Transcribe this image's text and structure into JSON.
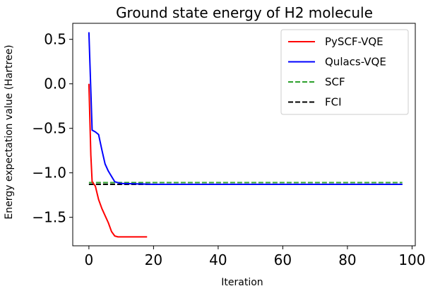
{
  "chart_data": {
    "type": "line",
    "title": "Ground state energy of H2 molecule",
    "xlabel": "Iteration",
    "ylabel": "Energy expectation value (Hartree)",
    "xlim": [
      -5,
      101
    ],
    "ylim": [
      -1.82,
      0.68
    ],
    "xticks": [
      0,
      20,
      40,
      60,
      80,
      100
    ],
    "yticks": [
      0.5,
      0.0,
      -0.5,
      -1.0,
      -1.5
    ],
    "ytick_labels": [
      "0.5",
      "0.0",
      "−0.5",
      "−1.0",
      "−1.5"
    ],
    "grid": false,
    "legend_position": "top-right",
    "series": [
      {
        "name": "PySCF-VQE",
        "color": "#ff0000",
        "style": "solid",
        "x": [
          0,
          0.6,
          1,
          2,
          3,
          4,
          5,
          6,
          7,
          8,
          9,
          10,
          11,
          12,
          13,
          14,
          15,
          16,
          17,
          18
        ],
        "y": [
          0.0,
          -0.8,
          -1.1,
          -1.15,
          -1.3,
          -1.4,
          -1.48,
          -1.56,
          -1.66,
          -1.71,
          -1.72,
          -1.72,
          -1.72,
          -1.72,
          -1.72,
          -1.72,
          -1.72,
          -1.72,
          -1.72,
          -1.72
        ]
      },
      {
        "name": "Qulacs-VQE",
        "color": "#0000ff",
        "style": "solid",
        "x": [
          0,
          1,
          2,
          3,
          4,
          5,
          6,
          7,
          8,
          9,
          10,
          15,
          20,
          30,
          40,
          50,
          60,
          70,
          80,
          90,
          97
        ],
        "y": [
          0.58,
          -0.52,
          -0.54,
          -0.57,
          -0.74,
          -0.9,
          -0.98,
          -1.04,
          -1.1,
          -1.11,
          -1.12,
          -1.125,
          -1.13,
          -1.13,
          -1.13,
          -1.13,
          -1.13,
          -1.13,
          -1.13,
          -1.13,
          -1.13
        ]
      },
      {
        "name": "SCF",
        "color": "#2ca02c",
        "style": "dashed",
        "x": [
          0,
          97
        ],
        "y": [
          -1.11,
          -1.11
        ]
      },
      {
        "name": "FCI",
        "color": "#000000",
        "style": "dashed",
        "x": [
          0,
          97
        ],
        "y": [
          -1.13,
          -1.13
        ]
      }
    ]
  }
}
